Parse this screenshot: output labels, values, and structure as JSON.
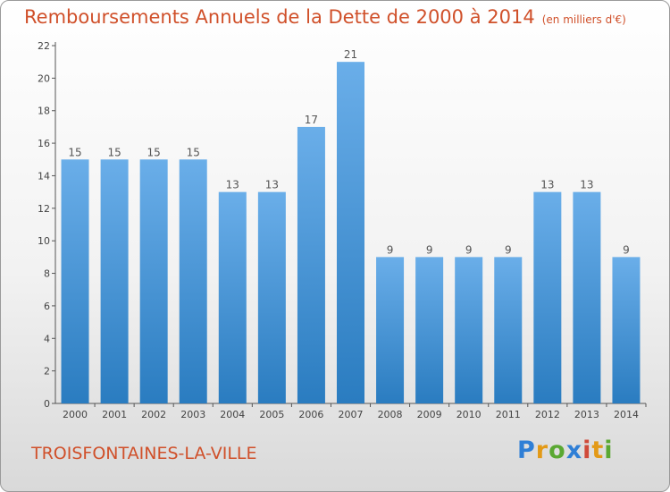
{
  "chart_data": {
    "type": "bar",
    "title": "Remboursements Annuels de la Dette de 2000 à 2014",
    "unit": "(en milliers d'€)",
    "categories": [
      "2000",
      "2001",
      "2002",
      "2003",
      "2004",
      "2005",
      "2006",
      "2007",
      "2008",
      "2009",
      "2010",
      "2011",
      "2012",
      "2013",
      "2014"
    ],
    "values": [
      15,
      15,
      15,
      15,
      13,
      13,
      17,
      21,
      9,
      9,
      9,
      9,
      13,
      13,
      9
    ],
    "ylim": [
      0,
      22
    ],
    "yticks": [
      0,
      2,
      4,
      6,
      8,
      10,
      12,
      14,
      16,
      18,
      20,
      22
    ],
    "grid": false,
    "data_labels": true,
    "bar_color_top": "#6aaee9",
    "bar_color_bottom": "#2a7cc0"
  },
  "footer": {
    "commune": "TROISFONTAINES-LA-VILLE",
    "logo_letters": [
      "P",
      "r",
      "o",
      "x",
      "i",
      "t",
      "i"
    ]
  },
  "colors": {
    "title": "#d0502a",
    "axis": "#555555"
  }
}
